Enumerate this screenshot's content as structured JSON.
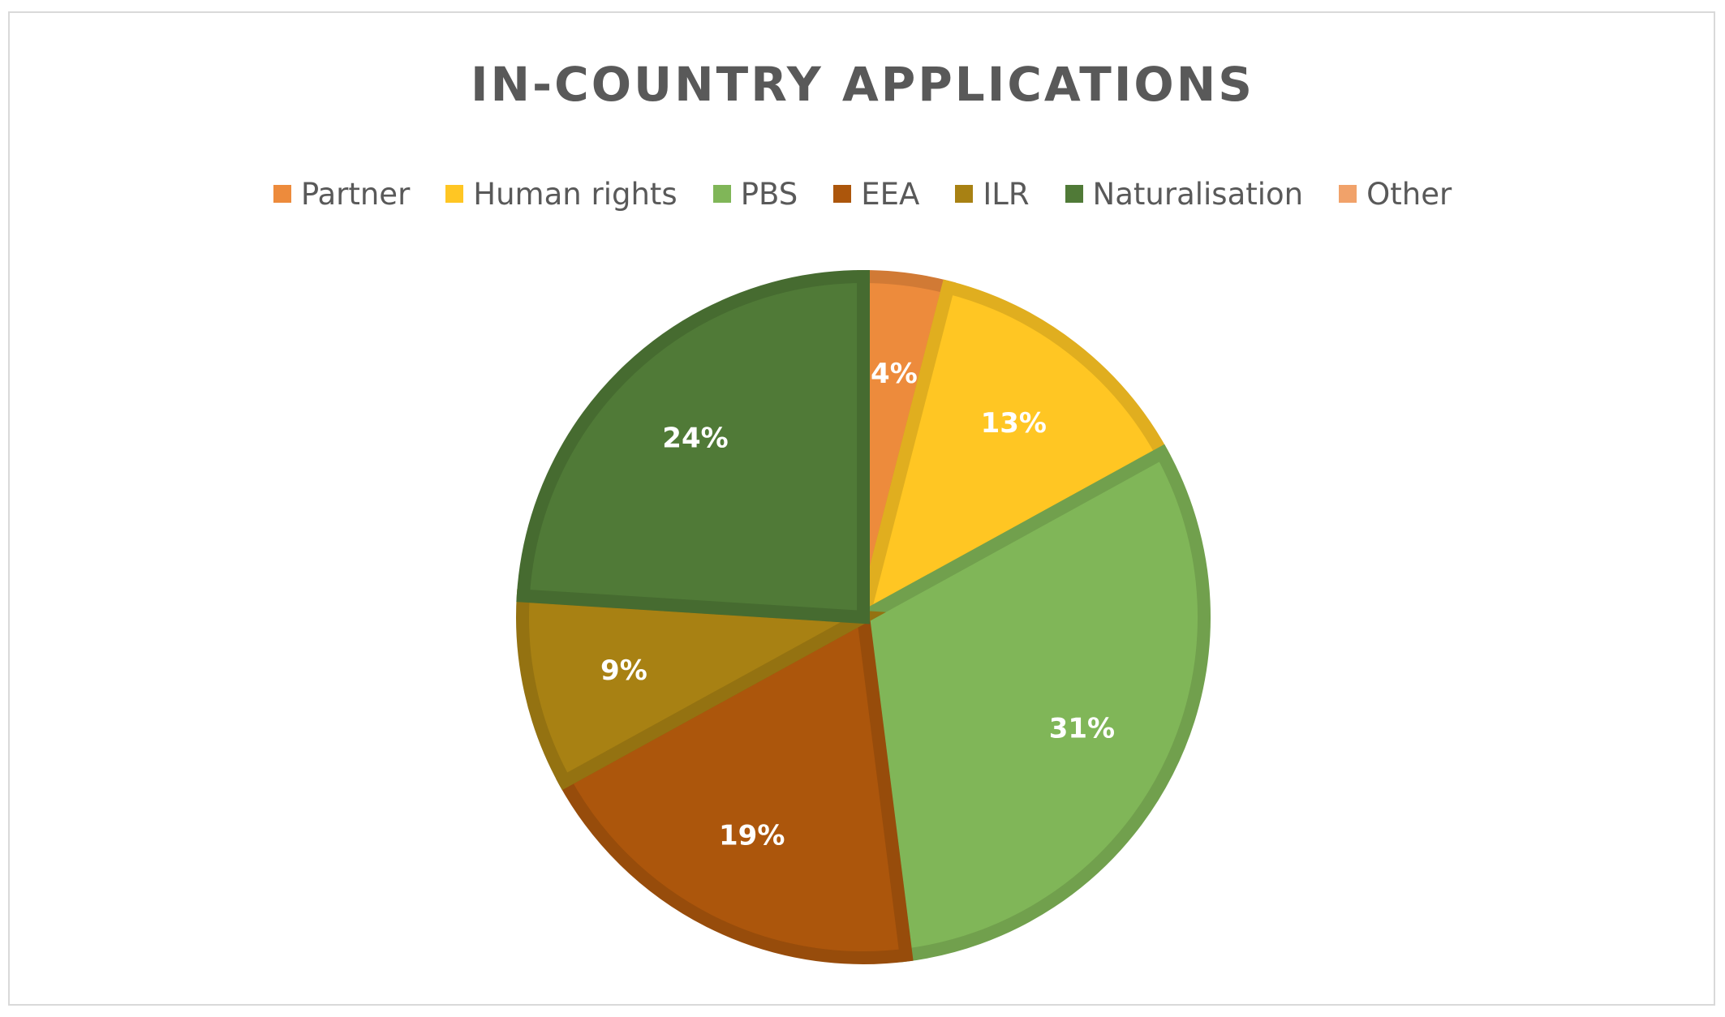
{
  "chart_data": {
    "type": "pie",
    "title": "IN-COUNTRY APPLICATIONS",
    "categories": [
      "Partner",
      "Human rights",
      "PBS",
      "EEA",
      "ILR",
      "Naturalisation",
      "Other"
    ],
    "values": [
      4,
      13,
      31,
      19,
      9,
      24,
      0
    ],
    "value_labels": [
      "4%",
      "13%",
      "31%",
      "19%",
      "9%",
      "24%",
      ""
    ],
    "colors": [
      "#ED8B3C",
      "#FFC623",
      "#80B658",
      "#AC560C",
      "#A88113",
      "#507A37",
      "#F1A26A"
    ],
    "legend_position": "top",
    "start_angle_deg": 0,
    "direction": "clockwise"
  }
}
